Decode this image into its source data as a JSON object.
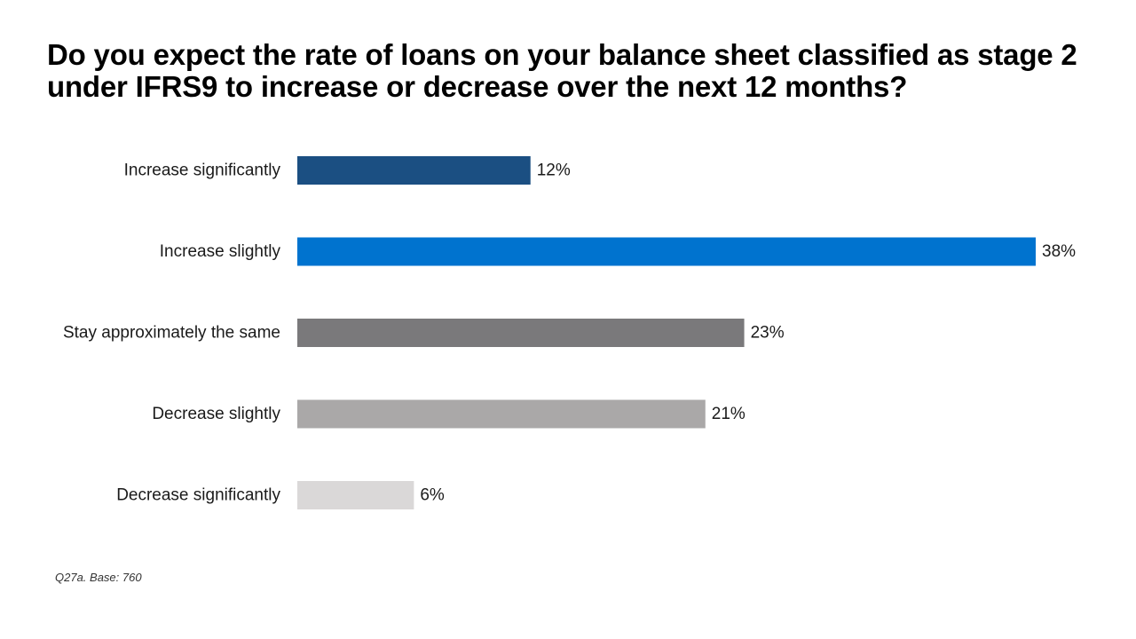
{
  "chart_data": {
    "type": "bar",
    "orientation": "horizontal",
    "title": "Do you expect the rate of loans on your balance sheet classified as stage 2 under IFRS9 to increase or decrease over the next 12 months?",
    "categories": [
      "Increase significantly",
      "Increase slightly",
      "Stay approximately the same",
      "Decrease slightly",
      "Decrease significantly"
    ],
    "values": [
      12,
      38,
      23,
      21,
      6
    ],
    "value_labels": [
      "12%",
      "38%",
      "23%",
      "21%",
      "6%"
    ],
    "colors": [
      "#1b4f82",
      "#0073cf",
      "#7a797b",
      "#aaa8a8",
      "#dad8d8"
    ],
    "xlim": [
      0,
      38
    ],
    "unit": "%",
    "grid": false,
    "legend": "none",
    "footnote": "Q27a. Base: 760"
  }
}
